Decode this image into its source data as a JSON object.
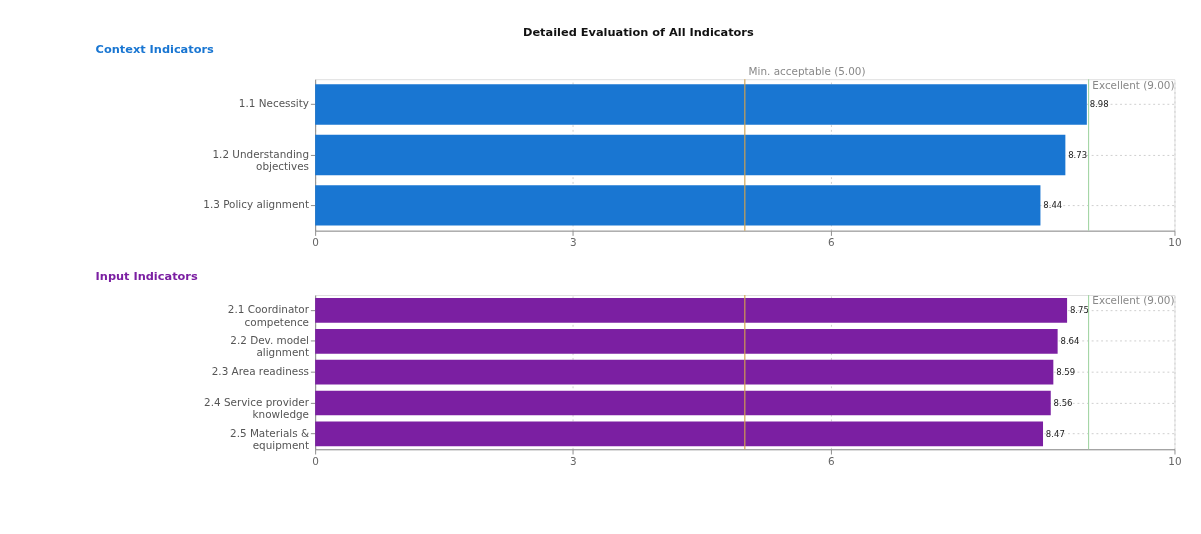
{
  "chart_data": [
    {
      "type": "bar",
      "orientation": "horizontal",
      "title": "Detailed Evaluation of All Indicators",
      "subtitle": "Context Indicators",
      "categories": [
        "1.1 Necessity",
        "1.2 Understanding\nobjectives",
        "1.3 Policy alignment"
      ],
      "series": [
        {
          "color": "#1976d2",
          "values": [
            8.98,
            8.73,
            8.44
          ]
        }
      ],
      "xlim": [
        0,
        10
      ],
      "xticks": [
        0,
        3,
        6,
        10
      ],
      "grid": true,
      "data_labels": true,
      "ref_lines": [
        {
          "axis": "x",
          "value": 5,
          "label": "Min. acceptable (5.00)",
          "color": "#d4a24c"
        },
        {
          "axis": "x",
          "value": 9,
          "label": "Excellent (9.00)",
          "color": "#a5d6a7"
        }
      ]
    },
    {
      "type": "bar",
      "orientation": "horizontal",
      "subtitle": "Input Indicators",
      "categories": [
        "2.1 Coordinator\ncompetence",
        "2.2 Dev. model\nalignment",
        "2.3 Area readiness",
        "2.4 Service provider\nknowledge",
        "2.5 Materials &\nequipment"
      ],
      "series": [
        {
          "color": "#7b1fa2",
          "values": [
            8.75,
            8.64,
            8.59,
            8.56,
            8.47
          ]
        }
      ],
      "xlim": [
        0,
        10
      ],
      "xticks": [
        0,
        3,
        6,
        10
      ],
      "grid": true,
      "data_labels": true,
      "ref_lines": [
        {
          "axis": "x",
          "value": 5,
          "color": "#d4a24c"
        },
        {
          "axis": "x",
          "value": 9,
          "label": "Excellent (9.00)",
          "color": "#a5d6a7"
        }
      ]
    }
  ]
}
